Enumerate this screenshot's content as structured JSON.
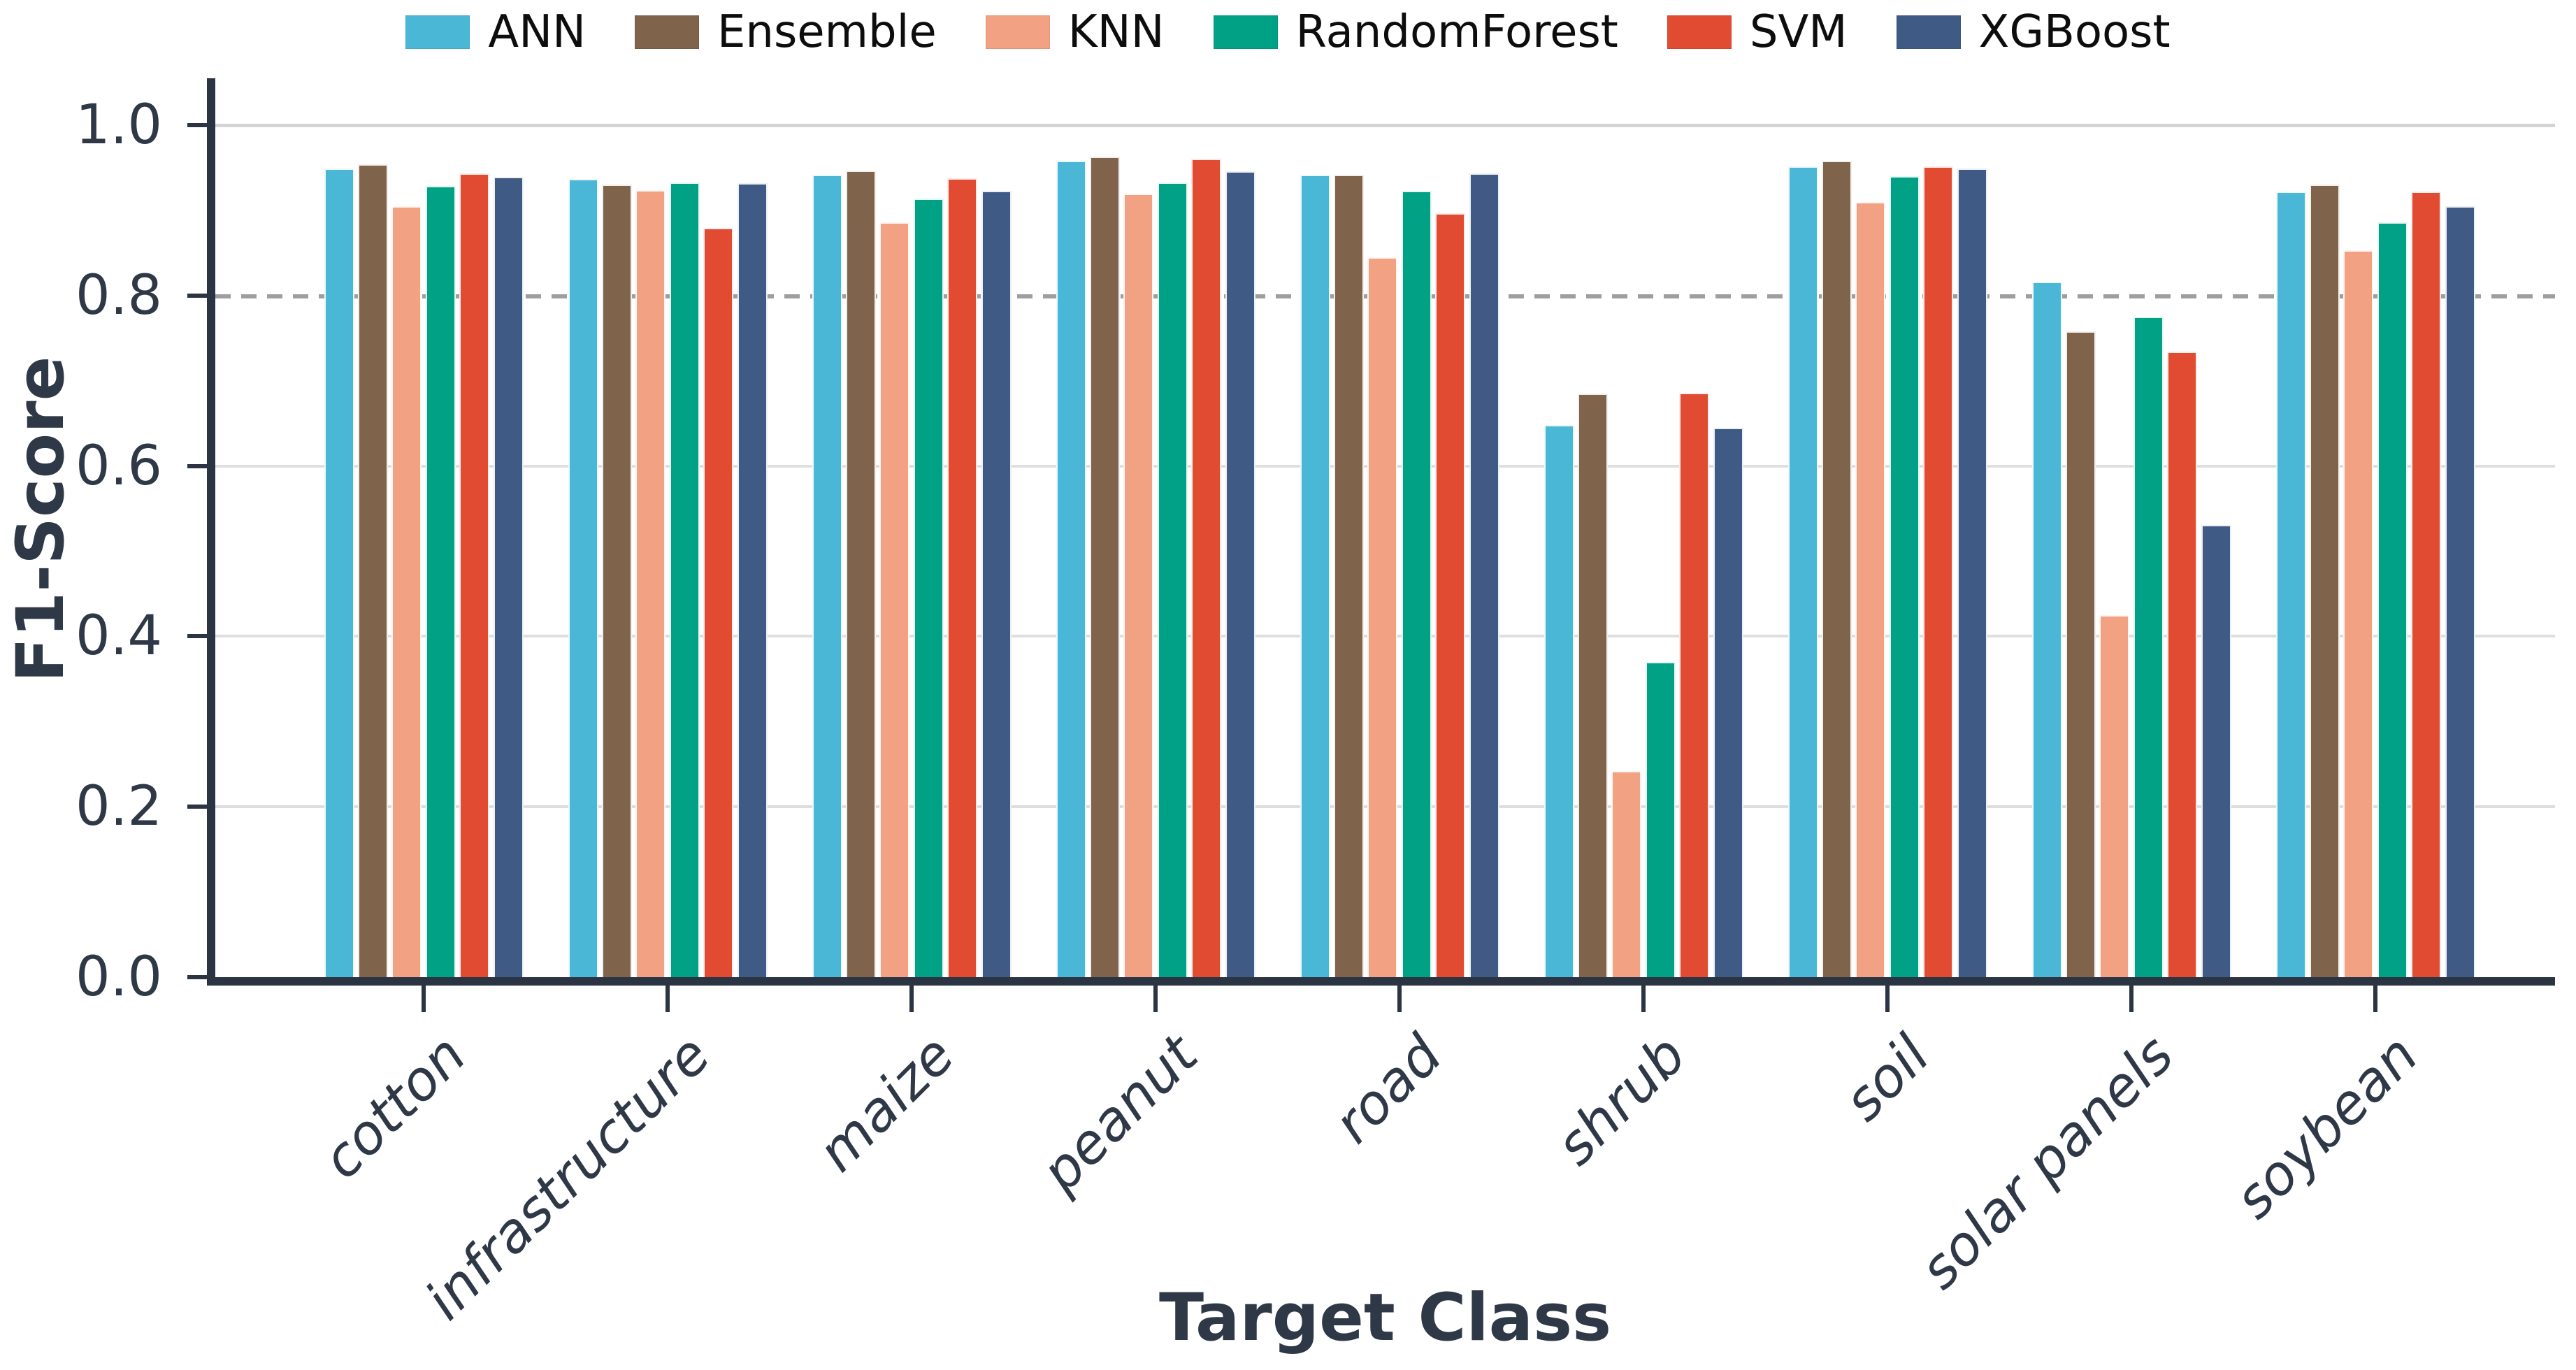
{
  "chart_data": {
    "type": "bar",
    "title": "",
    "xlabel": "Target Class",
    "ylabel": "F1-Score",
    "categories": [
      "cotton",
      "infrastructure",
      "maize",
      "peanut",
      "road",
      "shrub",
      "soil",
      "solar panels",
      "soybean"
    ],
    "series": [
      {
        "name": "ANN",
        "color": "#4bb7d6",
        "values": [
          0.949,
          0.937,
          0.942,
          0.958,
          0.942,
          0.648,
          0.952,
          0.816,
          0.922
        ]
      },
      {
        "name": "Ensemble",
        "color": "#7f634a",
        "values": [
          0.954,
          0.93,
          0.947,
          0.963,
          0.942,
          0.685,
          0.958,
          0.758,
          0.93
        ]
      },
      {
        "name": "KNN",
        "color": "#f3a183",
        "values": [
          0.905,
          0.924,
          0.886,
          0.92,
          0.845,
          0.242,
          0.91,
          0.425,
          0.853
        ]
      },
      {
        "name": "RandomForest",
        "color": "#00a185",
        "values": [
          0.929,
          0.933,
          0.914,
          0.933,
          0.923,
          0.37,
          0.94,
          0.775,
          0.886
        ]
      },
      {
        "name": "SVM",
        "color": "#e14b31",
        "values": [
          0.943,
          0.879,
          0.938,
          0.961,
          0.897,
          0.686,
          0.952,
          0.734,
          0.922
        ]
      },
      {
        "name": "XGBoost",
        "color": "#405a86",
        "values": [
          0.939,
          0.932,
          0.923,
          0.946,
          0.943,
          0.645,
          0.949,
          0.531,
          0.905
        ]
      }
    ],
    "yticks": [
      0.0,
      0.2,
      0.4,
      0.6,
      0.8,
      1.0
    ],
    "ylim": [
      0.0,
      1.05
    ],
    "grid": true,
    "reference_line": {
      "y": 0.8,
      "style": "dashed"
    },
    "legend_position": "top"
  },
  "colors": {
    "axis": "#2b3442",
    "tick_text": "#2e3846",
    "grid": "#dedede",
    "dashed_line": "#9e9e9e",
    "background": "#ffffff",
    "legend_text": "#0d0d0d"
  }
}
